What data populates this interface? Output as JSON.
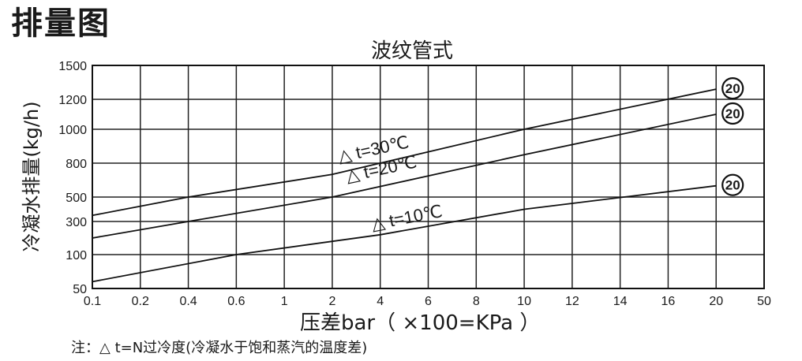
{
  "page_title": "排量图",
  "footnote": "注：△ t=N过冷度(冷凝水于饱和蒸汽的温度差)",
  "chart_data": {
    "type": "line",
    "title": "波纹管式",
    "xlabel": "压差bar（ ×100=KPa ）",
    "ylabel": "冷凝水排量(kg/h)",
    "x_ticks": [
      "0.1",
      "0.2",
      "0.4",
      "0.6",
      "1",
      "2",
      "4",
      "6",
      "8",
      "10",
      "12",
      "14",
      "16",
      "20",
      "50"
    ],
    "y_ticks": [
      "50",
      "100",
      "300",
      "500",
      "800",
      "1000",
      "1200",
      "1500"
    ],
    "grid": true,
    "series": [
      {
        "name": "△ t=30℃",
        "marker_label": "20",
        "points": [
          [
            "0.1",
            350
          ],
          [
            "0.4",
            500
          ],
          [
            "2",
            700
          ],
          [
            "10",
            1000
          ],
          [
            "20",
            1290
          ]
        ]
      },
      {
        "name": "△ t=20℃",
        "marker_label": "20",
        "points": [
          [
            "0.1",
            200
          ],
          [
            "0.4",
            300
          ],
          [
            "2",
            500
          ],
          [
            "10",
            850
          ],
          [
            "20",
            1100
          ]
        ]
      },
      {
        "name": "△ t=10℃",
        "marker_label": "20",
        "points": [
          [
            "0.1",
            60
          ],
          [
            "0.6",
            100
          ],
          [
            "4",
            220
          ],
          [
            "10",
            400
          ],
          [
            "20",
            600
          ]
        ]
      }
    ]
  }
}
